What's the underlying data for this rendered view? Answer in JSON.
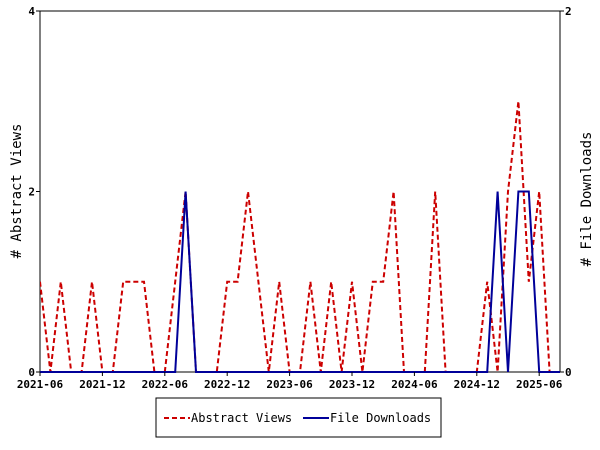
{
  "chart_data": {
    "type": "line",
    "x": [
      "2021-06",
      "2021-07",
      "2021-08",
      "2021-09",
      "2021-10",
      "2021-11",
      "2021-12",
      "2022-01",
      "2022-02",
      "2022-03",
      "2022-04",
      "2022-05",
      "2022-06",
      "2022-07",
      "2022-08",
      "2022-09",
      "2022-10",
      "2022-11",
      "2022-12",
      "2023-01",
      "2023-02",
      "2023-03",
      "2023-04",
      "2023-05",
      "2023-06",
      "2023-07",
      "2023-08",
      "2023-09",
      "2023-10",
      "2023-11",
      "2023-12",
      "2024-01",
      "2024-02",
      "2024-03",
      "2024-04",
      "2024-05",
      "2024-06",
      "2024-07",
      "2024-08",
      "2024-09",
      "2024-10",
      "2024-11",
      "2024-12",
      "2025-01",
      "2025-02",
      "2025-03",
      "2025-04",
      "2025-05",
      "2025-06",
      "2025-07",
      "2025-08"
    ],
    "x_tick_labels": [
      "2021-06",
      "2021-12",
      "2022-06",
      "2022-12",
      "2023-06",
      "2023-12",
      "2024-06",
      "2024-12",
      "2025-06"
    ],
    "x_tick_indices": [
      0,
      6,
      12,
      18,
      24,
      30,
      36,
      42,
      48
    ],
    "series": [
      {
        "name": "Abstract Views",
        "axis": "left",
        "color": "#cc0000",
        "style": "dashed",
        "values": [
          1,
          0,
          1,
          0,
          0,
          1,
          0,
          0,
          1,
          1,
          1,
          0,
          0,
          1,
          2,
          0,
          0,
          0,
          1,
          1,
          2,
          1,
          0,
          1,
          0,
          0,
          1,
          0,
          1,
          0,
          1,
          0,
          1,
          1,
          2,
          0,
          0,
          0,
          2,
          0,
          0,
          0,
          0,
          1,
          0,
          2,
          3,
          1,
          2,
          0,
          0
        ]
      },
      {
        "name": "File Downloads",
        "axis": "right",
        "color": "#000099",
        "style": "solid",
        "values": [
          0,
          0,
          0,
          0,
          0,
          0,
          0,
          0,
          0,
          0,
          0,
          0,
          0,
          0,
          1,
          0,
          0,
          0,
          0,
          0,
          0,
          0,
          0,
          0,
          0,
          0,
          0,
          0,
          0,
          0,
          0,
          0,
          0,
          0,
          0,
          0,
          0,
          0,
          0,
          0,
          0,
          0,
          0,
          0,
          1,
          0,
          1,
          1,
          0,
          0,
          0
        ]
      }
    ],
    "ylabel_left": "# Abstract Views",
    "ylabel_right": "# File Downloads",
    "ylim_left": [
      0,
      4
    ],
    "ylim_right": [
      0,
      2
    ],
    "yticks_left": [
      0,
      2,
      4
    ],
    "yticks_right": [
      0,
      2
    ],
    "legend": {
      "placement": "bottom-center"
    },
    "grid": false
  }
}
